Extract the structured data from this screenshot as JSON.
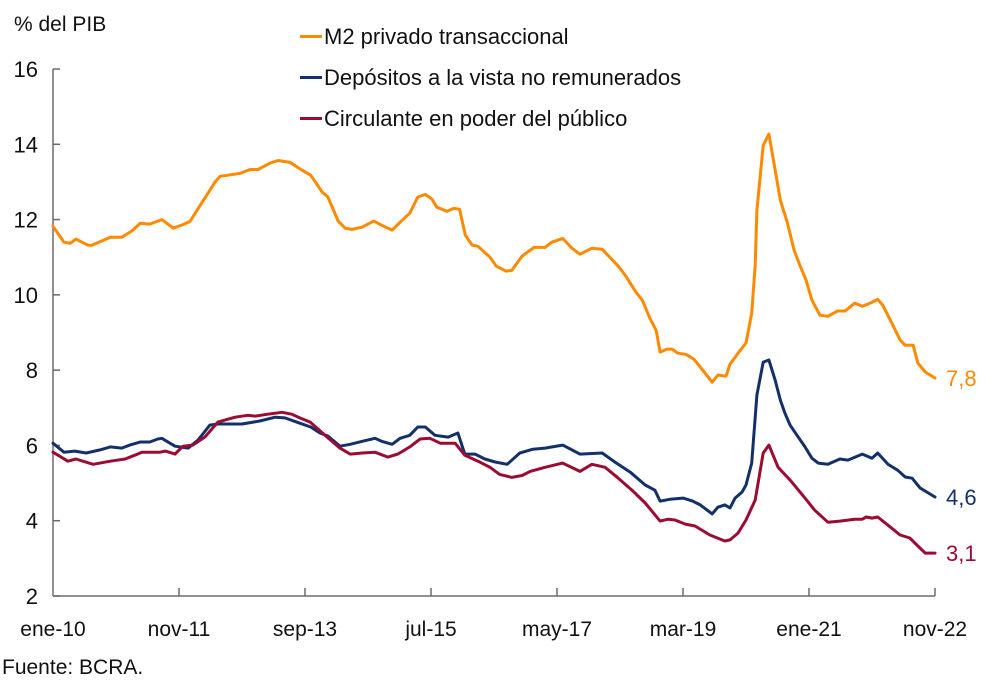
{
  "chart_data": {
    "type": "line",
    "title": "",
    "ylabel": "% del PIB",
    "xlabel": "",
    "source": "Fuente: BCRA.",
    "x_unit": "months since ene-10",
    "xlim": [
      0,
      154
    ],
    "ylim": [
      2,
      16
    ],
    "yticks": [
      2,
      4,
      6,
      8,
      10,
      12,
      14,
      16
    ],
    "xticks": [
      {
        "m": 0,
        "label": "ene-10"
      },
      {
        "m": 22,
        "label": "nov-11"
      },
      {
        "m": 44,
        "label": "sep-13"
      },
      {
        "m": 66,
        "label": "jul-15"
      },
      {
        "m": 88,
        "label": "may-17"
      },
      {
        "m": 110,
        "label": "mar-19"
      },
      {
        "m": 132,
        "label": "ene-21"
      },
      {
        "m": 154,
        "label": "nov-22"
      }
    ],
    "grid": false,
    "legend_position": "top-center",
    "series": [
      {
        "name": "M2 privado transaccional",
        "color": "#ff8a00",
        "end_label": "7,8",
        "points": [
          [
            0,
            11.82
          ],
          [
            1.9,
            11.4
          ],
          [
            3,
            11.37
          ],
          [
            4,
            11.48
          ],
          [
            6.1,
            11.32
          ],
          [
            6.8,
            11.32
          ],
          [
            10,
            11.53
          ],
          [
            12,
            11.53
          ],
          [
            13.8,
            11.7
          ],
          [
            15.2,
            11.9
          ],
          [
            16.9,
            11.88
          ],
          [
            19,
            12.0
          ],
          [
            21,
            11.77
          ],
          [
            22.9,
            11.88
          ],
          [
            23.9,
            11.95
          ],
          [
            25.7,
            12.38
          ],
          [
            27.4,
            12.78
          ],
          [
            28.3,
            13.0
          ],
          [
            29.2,
            13.15
          ],
          [
            32.7,
            13.23
          ],
          [
            34.4,
            13.33
          ],
          [
            35.8,
            13.33
          ],
          [
            37.9,
            13.5
          ],
          [
            39.3,
            13.57
          ],
          [
            41.4,
            13.52
          ],
          [
            43.1,
            13.35
          ],
          [
            45,
            13.18
          ],
          [
            47,
            12.73
          ],
          [
            48,
            12.6
          ],
          [
            49.8,
            11.96
          ],
          [
            51,
            11.77
          ],
          [
            52.2,
            11.74
          ],
          [
            54,
            11.8
          ],
          [
            56,
            11.96
          ],
          [
            57.4,
            11.85
          ],
          [
            59.2,
            11.72
          ],
          [
            60.6,
            11.93
          ],
          [
            62.3,
            12.17
          ],
          [
            63.7,
            12.6
          ],
          [
            65,
            12.67
          ],
          [
            66.2,
            12.54
          ],
          [
            67,
            12.33
          ],
          [
            68.8,
            12.22
          ],
          [
            70,
            12.3
          ],
          [
            71,
            12.27
          ],
          [
            72,
            11.58
          ],
          [
            73.2,
            11.32
          ],
          [
            74.2,
            11.29
          ],
          [
            76.3,
            11.0
          ],
          [
            77.4,
            10.76
          ],
          [
            79.1,
            10.63
          ],
          [
            80.1,
            10.65
          ],
          [
            81.9,
            11.03
          ],
          [
            84,
            11.26
          ],
          [
            85.9,
            11.26
          ],
          [
            87.1,
            11.4
          ],
          [
            89,
            11.5
          ],
          [
            90.6,
            11.24
          ],
          [
            92,
            11.08
          ],
          [
            94.1,
            11.24
          ],
          [
            95.9,
            11.21
          ],
          [
            96.9,
            11.05
          ],
          [
            98.7,
            10.76
          ],
          [
            100,
            10.5
          ],
          [
            101.8,
            10.07
          ],
          [
            102.9,
            9.86
          ],
          [
            104.2,
            9.38
          ],
          [
            105.3,
            9.06
          ],
          [
            106,
            8.48
          ],
          [
            107.2,
            8.56
          ],
          [
            108.1,
            8.56
          ],
          [
            109.1,
            8.45
          ],
          [
            110.5,
            8.42
          ],
          [
            111.9,
            8.29
          ],
          [
            113.7,
            7.95
          ],
          [
            115.1,
            7.68
          ],
          [
            116.1,
            7.87
          ],
          [
            117.5,
            7.84
          ],
          [
            118.2,
            8.16
          ],
          [
            120,
            8.53
          ],
          [
            121,
            8.72
          ],
          [
            122,
            9.51
          ],
          [
            122.6,
            10.79
          ],
          [
            122.9,
            12.25
          ],
          [
            124,
            13.97
          ],
          [
            125,
            14.27
          ],
          [
            126.1,
            13.31
          ],
          [
            127,
            12.51
          ],
          [
            128.2,
            11.93
          ],
          [
            129.4,
            11.19
          ],
          [
            130.4,
            10.79
          ],
          [
            131.5,
            10.39
          ],
          [
            132.5,
            9.86
          ],
          [
            133.9,
            9.46
          ],
          [
            135.3,
            9.43
          ],
          [
            137,
            9.57
          ],
          [
            138.3,
            9.57
          ],
          [
            140,
            9.78
          ],
          [
            141.3,
            9.7
          ],
          [
            142.7,
            9.78
          ],
          [
            144,
            9.88
          ],
          [
            144.9,
            9.72
          ],
          [
            146.2,
            9.33
          ],
          [
            147.9,
            8.8
          ],
          [
            148.8,
            8.66
          ],
          [
            150.2,
            8.66
          ],
          [
            151,
            8.19
          ],
          [
            152.3,
            7.95
          ],
          [
            154,
            7.79
          ]
        ]
      },
      {
        "name": "Depósitos a la vista no remunerados",
        "color": "#13306b",
        "end_label": "4,6",
        "points": [
          [
            0,
            6.06
          ],
          [
            1.9,
            5.82
          ],
          [
            3.8,
            5.85
          ],
          [
            5.8,
            5.8
          ],
          [
            8.2,
            5.88
          ],
          [
            10,
            5.96
          ],
          [
            12,
            5.93
          ],
          [
            13.4,
            6.01
          ],
          [
            15.2,
            6.09
          ],
          [
            16.9,
            6.09
          ],
          [
            18.3,
            6.17
          ],
          [
            19,
            6.19
          ],
          [
            21.3,
            5.98
          ],
          [
            23.6,
            5.93
          ],
          [
            25.3,
            6.14
          ],
          [
            27.4,
            6.54
          ],
          [
            28.8,
            6.57
          ],
          [
            33,
            6.57
          ],
          [
            36.1,
            6.65
          ],
          [
            38.8,
            6.75
          ],
          [
            40.5,
            6.73
          ],
          [
            43.1,
            6.59
          ],
          [
            45,
            6.49
          ],
          [
            46.6,
            6.33
          ],
          [
            48,
            6.25
          ],
          [
            50.1,
            5.98
          ],
          [
            51.9,
            6.03
          ],
          [
            54,
            6.11
          ],
          [
            56.2,
            6.19
          ],
          [
            57.4,
            6.11
          ],
          [
            59.2,
            6.03
          ],
          [
            60.6,
            6.19
          ],
          [
            62.3,
            6.27
          ],
          [
            63.7,
            6.49
          ],
          [
            65,
            6.49
          ],
          [
            66.7,
            6.27
          ],
          [
            69,
            6.22
          ],
          [
            70.7,
            6.33
          ],
          [
            71.9,
            5.77
          ],
          [
            73.7,
            5.77
          ],
          [
            75.4,
            5.64
          ],
          [
            77.2,
            5.56
          ],
          [
            79.3,
            5.5
          ],
          [
            81.5,
            5.8
          ],
          [
            83.8,
            5.9
          ],
          [
            85.9,
            5.93
          ],
          [
            89,
            6.01
          ],
          [
            92,
            5.77
          ],
          [
            95.9,
            5.8
          ],
          [
            98.1,
            5.56
          ],
          [
            100.8,
            5.29
          ],
          [
            103.4,
            4.95
          ],
          [
            105.1,
            4.81
          ],
          [
            106,
            4.52
          ],
          [
            107.7,
            4.57
          ],
          [
            110,
            4.6
          ],
          [
            111.7,
            4.52
          ],
          [
            113,
            4.42
          ],
          [
            115.1,
            4.18
          ],
          [
            116.1,
            4.36
          ],
          [
            117.3,
            4.42
          ],
          [
            118.2,
            4.34
          ],
          [
            119.1,
            4.6
          ],
          [
            120.3,
            4.76
          ],
          [
            121,
            4.95
          ],
          [
            122,
            5.53
          ],
          [
            122.9,
            7.34
          ],
          [
            124,
            8.21
          ],
          [
            125,
            8.27
          ],
          [
            126.1,
            7.73
          ],
          [
            127,
            7.2
          ],
          [
            127.8,
            6.86
          ],
          [
            128.7,
            6.54
          ],
          [
            129.9,
            6.27
          ],
          [
            131.3,
            5.96
          ],
          [
            132.5,
            5.66
          ],
          [
            133.6,
            5.53
          ],
          [
            135.3,
            5.5
          ],
          [
            137.4,
            5.64
          ],
          [
            138.8,
            5.61
          ],
          [
            141.3,
            5.77
          ],
          [
            143,
            5.66
          ],
          [
            144,
            5.8
          ],
          [
            145.8,
            5.5
          ],
          [
            147.5,
            5.34
          ],
          [
            148.8,
            5.16
          ],
          [
            150,
            5.13
          ],
          [
            151.4,
            4.87
          ],
          [
            154,
            4.63
          ]
        ]
      },
      {
        "name": "Circulante en poder del público",
        "color": "#9b0b32",
        "end_label": "3,1",
        "points": [
          [
            0,
            5.82
          ],
          [
            2.6,
            5.58
          ],
          [
            4,
            5.64
          ],
          [
            7,
            5.5
          ],
          [
            10,
            5.58
          ],
          [
            12.6,
            5.64
          ],
          [
            14.3,
            5.74
          ],
          [
            15.5,
            5.82
          ],
          [
            18.7,
            5.82
          ],
          [
            19.6,
            5.85
          ],
          [
            21.3,
            5.77
          ],
          [
            22.7,
            5.98
          ],
          [
            24.4,
            6.01
          ],
          [
            26.5,
            6.22
          ],
          [
            28.8,
            6.62
          ],
          [
            31.8,
            6.75
          ],
          [
            34,
            6.8
          ],
          [
            35.3,
            6.78
          ],
          [
            37.5,
            6.83
          ],
          [
            40,
            6.88
          ],
          [
            41.7,
            6.83
          ],
          [
            43.1,
            6.73
          ],
          [
            44.9,
            6.62
          ],
          [
            47.5,
            6.27
          ],
          [
            50.1,
            5.93
          ],
          [
            51.9,
            5.77
          ],
          [
            54,
            5.8
          ],
          [
            56.2,
            5.82
          ],
          [
            58.5,
            5.69
          ],
          [
            60.2,
            5.77
          ],
          [
            62.3,
            5.96
          ],
          [
            64.1,
            6.17
          ],
          [
            65.8,
            6.19
          ],
          [
            67.6,
            6.06
          ],
          [
            70.2,
            6.06
          ],
          [
            71.9,
            5.74
          ],
          [
            74.2,
            5.58
          ],
          [
            76.3,
            5.42
          ],
          [
            78,
            5.23
          ],
          [
            80.1,
            5.15
          ],
          [
            81.9,
            5.2
          ],
          [
            83.3,
            5.31
          ],
          [
            85.9,
            5.42
          ],
          [
            89,
            5.53
          ],
          [
            92,
            5.31
          ],
          [
            94.1,
            5.5
          ],
          [
            96.4,
            5.42
          ],
          [
            98.7,
            5.13
          ],
          [
            101.1,
            4.81
          ],
          [
            103.4,
            4.47
          ],
          [
            106,
            3.99
          ],
          [
            107.4,
            4.04
          ],
          [
            108.6,
            4.02
          ],
          [
            110.4,
            3.91
          ],
          [
            112.1,
            3.86
          ],
          [
            114.7,
            3.62
          ],
          [
            117.3,
            3.46
          ],
          [
            118.2,
            3.49
          ],
          [
            119.6,
            3.67
          ],
          [
            121,
            4.02
          ],
          [
            122.6,
            4.55
          ],
          [
            124,
            5.8
          ],
          [
            125,
            6.01
          ],
          [
            126.6,
            5.42
          ],
          [
            128.7,
            5.08
          ],
          [
            131.3,
            4.6
          ],
          [
            133,
            4.28
          ],
          [
            135.3,
            3.96
          ],
          [
            137.4,
            3.99
          ],
          [
            140,
            4.04
          ],
          [
            141.3,
            4.04
          ],
          [
            142,
            4.1
          ],
          [
            143,
            4.07
          ],
          [
            144,
            4.1
          ],
          [
            146.2,
            3.83
          ],
          [
            147.9,
            3.62
          ],
          [
            149.6,
            3.54
          ],
          [
            151.4,
            3.27
          ],
          [
            152.3,
            3.14
          ],
          [
            154,
            3.14
          ]
        ]
      }
    ]
  }
}
